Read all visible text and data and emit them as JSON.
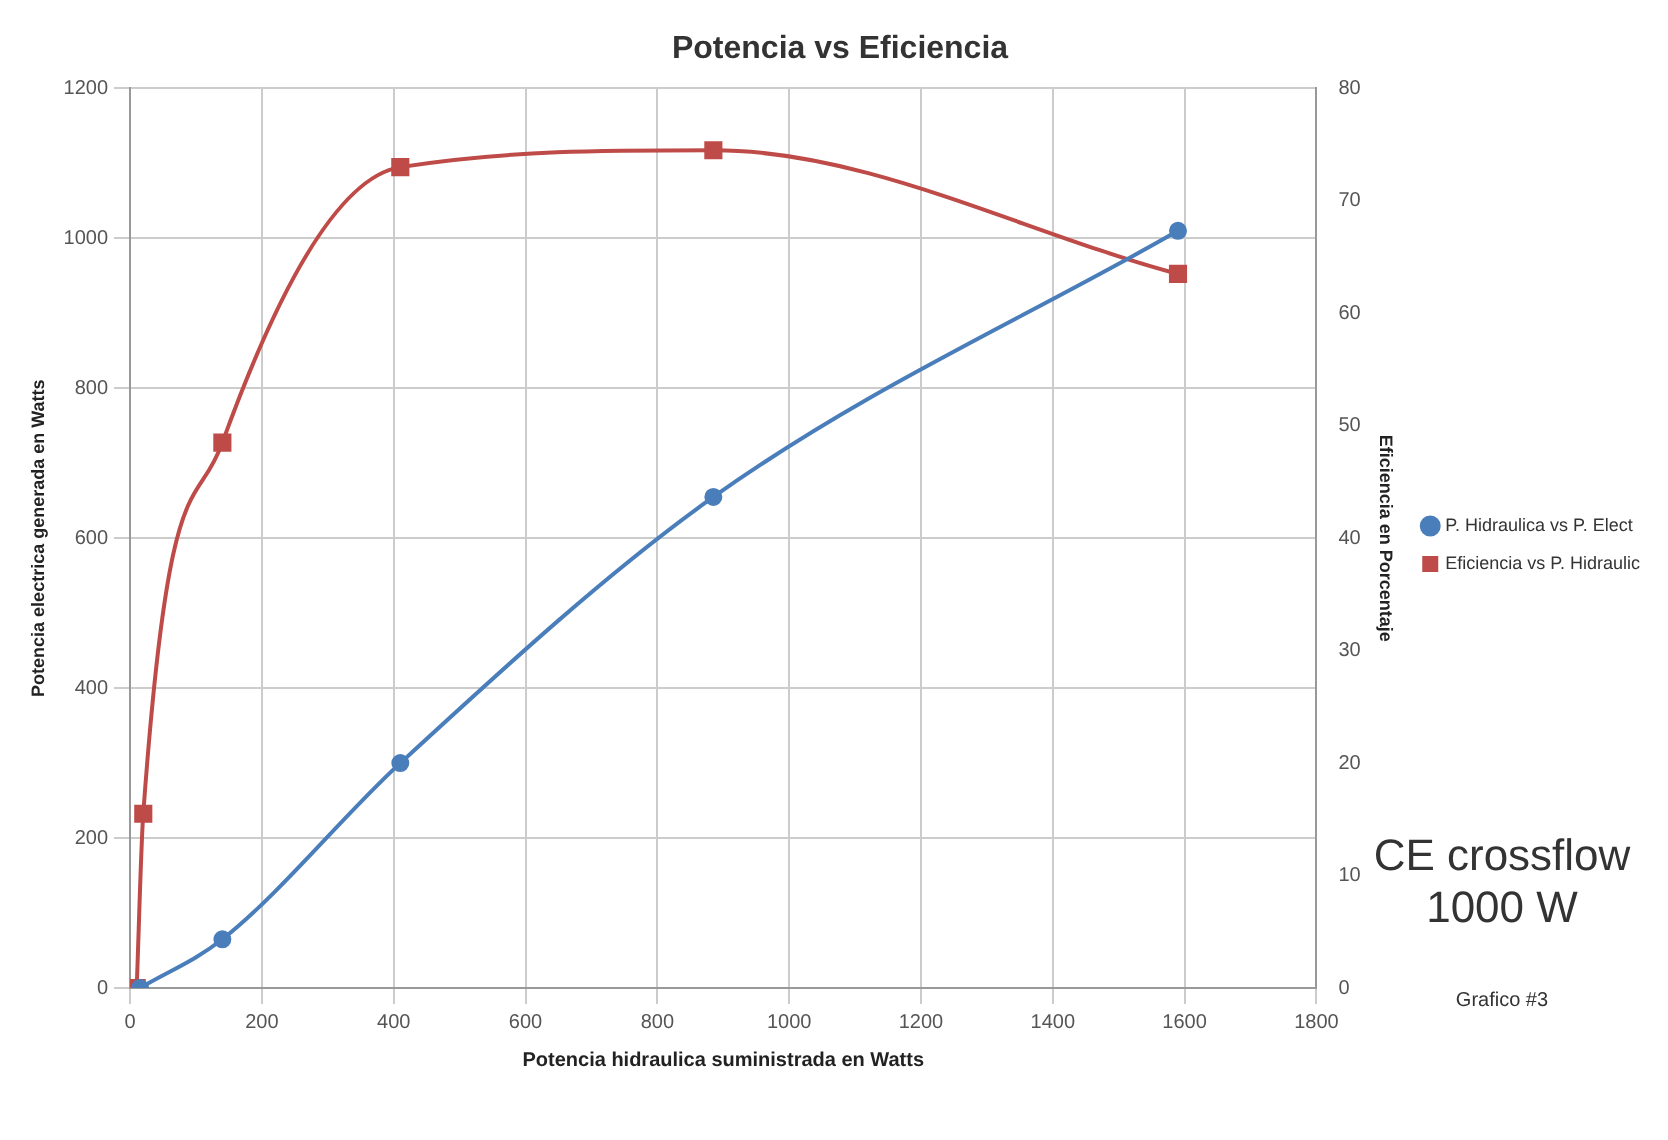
{
  "chart_data": {
    "type": "line",
    "title": "Potencia vs Eficiencia",
    "xlabel": "Potencia hidraulica suministrada en Watts",
    "ylabel": "Potencia electrica generada en Watts",
    "y2label": "Eficiencia en Porcentaje",
    "xlim": [
      0,
      1800
    ],
    "xticks": [
      0,
      200,
      400,
      600,
      800,
      1000,
      1200,
      1400,
      1600,
      1800
    ],
    "ylim": [
      0,
      1200
    ],
    "yticks": [
      0,
      200,
      400,
      600,
      800,
      1000,
      1200
    ],
    "y2lim": [
      0,
      80
    ],
    "y2ticks": [
      0,
      10,
      20,
      30,
      40,
      50,
      60,
      70,
      80
    ],
    "grid": true,
    "legend": "right",
    "series": [
      {
        "name": "P. Hidraulica vs P. Elect",
        "color": "#4a7ebb",
        "marker": "circle",
        "x": [
          15,
          140,
          410,
          885,
          1590
        ],
        "values": [
          0,
          65,
          300,
          655,
          1010
        ]
      },
      {
        "name": "Eficiencia vs P. Hidraulic",
        "color": "#be4b48",
        "marker": "square",
        "axis": "y2",
        "x": [
          10,
          20,
          140,
          410,
          885,
          1590
        ],
        "values": [
          0,
          15.5,
          48.5,
          73,
          74.5,
          63.5
        ]
      }
    ],
    "annotations": [
      "CE crossflow\n1000 W",
      "Grafico #3"
    ]
  }
}
